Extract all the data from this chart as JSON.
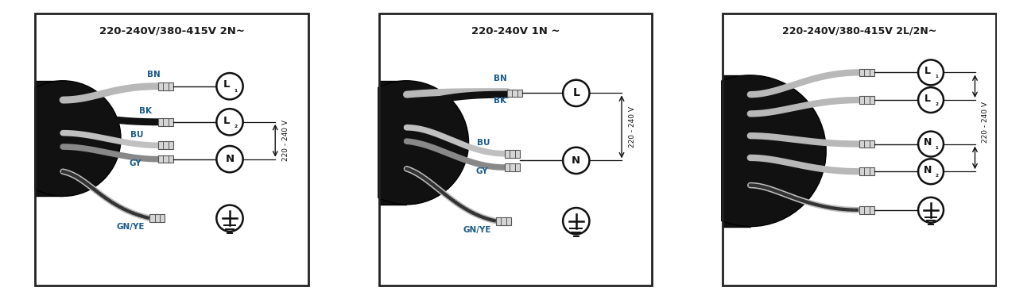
{
  "bg_color": "#ffffff",
  "border_color": "#222222",
  "title_color": "#1a1a1a",
  "label_color": "#1a5a8a",
  "wire_gray_light": "#c0c0c0",
  "wire_black": "#111111",
  "wire_med_gray": "#888888",
  "wire_striped_base": "#aaaaaa",
  "connector_fill": "#d8d8d8",
  "connector_edge": "#555555",
  "cable_black": "#111111",
  "circle_edge": "#111111",
  "arrow_color": "#111111",
  "panels": [
    {
      "title": "220-240V/380-415V 2N~",
      "idx": 0
    },
    {
      "title": "220-240V 1N ~",
      "idx": 1
    },
    {
      "title": "220-240V/380-415V 2L/2N~",
      "idx": 2
    }
  ]
}
